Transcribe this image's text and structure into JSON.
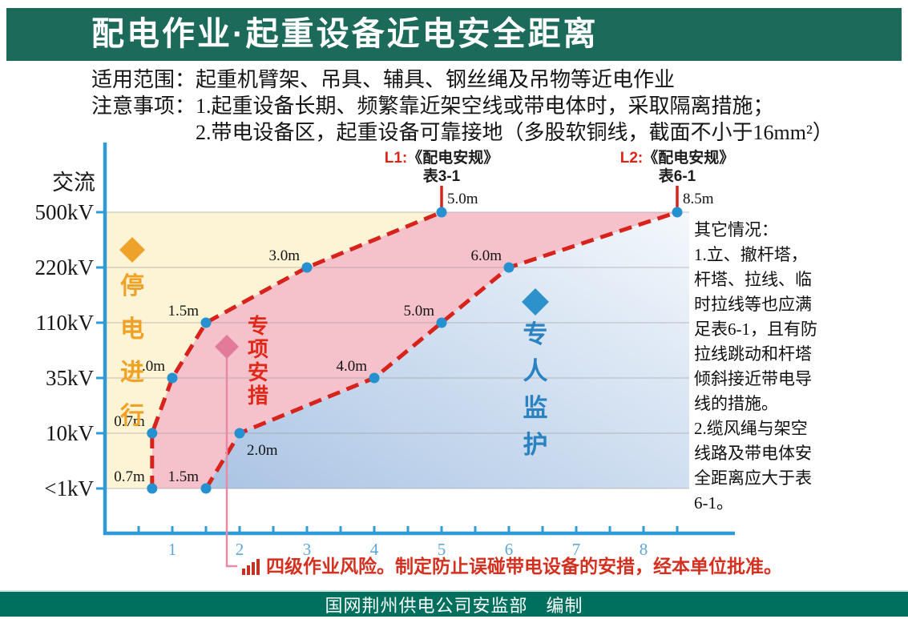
{
  "title": "配电作业·起重设备近电安全距离",
  "header": {
    "line1": "适用范围：起重机臂架、吊具、辅具、钢丝绳及吊物等近电作业",
    "line2": "注意事项：1.起重设备长期、频繁靠近架空线或带电体时，采取隔离措施；",
    "line3": "2.带电设备区，起重设备可靠接地（多股软铜线，截面不小于16mm²）"
  },
  "colors": {
    "header_bar": "#1c6a5a",
    "footer_bar": "#00705e",
    "axis": "#2e9ad8",
    "tick_label": "#5ea7d6",
    "grid": "#9a9a9a",
    "dot": "#2691d0",
    "dashed_line": "#d8231c",
    "risk_text": "#d5301f",
    "connector": "#e78aa6"
  },
  "chart_data": {
    "type": "line",
    "title": "配电作业·起重设备近电安全距离",
    "y_axis_label": "交流",
    "y_categories": [
      "<1kV",
      "10kV",
      "35kV",
      "110kV",
      "220kV",
      "500kV"
    ],
    "x_ticks": [
      1,
      2,
      3,
      4,
      5,
      6,
      7,
      8
    ],
    "x_range": [
      0,
      8.5
    ],
    "x_unit": "m",
    "grid": true,
    "series": [
      {
        "id_label": "L1:",
        "ref": "《配电安规》",
        "table": "表3-1",
        "color": "#d8231c",
        "points": [
          {
            "x": 0.7,
            "y": "<1kV",
            "label": "0.7m",
            "lpos": "left"
          },
          {
            "x": 0.7,
            "y": "10kV",
            "label": "0.7m",
            "lpos": "left"
          },
          {
            "x": 1.0,
            "y": "35kV",
            "label": "1.0m",
            "lpos": "left"
          },
          {
            "x": 1.5,
            "y": "110kV",
            "label": "1.5m",
            "lpos": "left"
          },
          {
            "x": 3.0,
            "y": "220kV",
            "label": "3.0m",
            "lpos": "left"
          },
          {
            "x": 5.0,
            "y": "500kV",
            "label": "5.0m",
            "lpos": "right"
          }
        ]
      },
      {
        "id_label": "L2:",
        "ref": "《配电安规》",
        "table": "表6-1",
        "color": "#d8231c",
        "points": [
          {
            "x": 1.5,
            "y": "<1kV",
            "label": "1.5m",
            "lpos": "left"
          },
          {
            "x": 2.0,
            "y": "10kV",
            "label": "2.0m",
            "lpos": "below"
          },
          {
            "x": 4.0,
            "y": "35kV",
            "label": "4.0m",
            "lpos": "left"
          },
          {
            "x": 5.0,
            "y": "110kV",
            "label": "5.0m",
            "lpos": "left"
          },
          {
            "x": 6.0,
            "y": "220kV",
            "label": "6.0m",
            "lpos": "left"
          },
          {
            "x": 8.5,
            "y": "500kV",
            "label": "8.5m",
            "lpos": "right"
          }
        ]
      }
    ],
    "regions": [
      {
        "label": "停电进行",
        "text_color": "#f0a226",
        "marker_color": "#eea229",
        "fill": "#fcf4d4",
        "marker": "diamond"
      },
      {
        "label": "专项安措",
        "text_color": "#e02818",
        "marker_color": "#e27b99",
        "fill": "#f5c2cc",
        "marker": "diamond"
      },
      {
        "label": "专人监护",
        "text_color": "#2a82c0",
        "marker_color": "#2d92cc",
        "fill_gradient": [
          "#aac4e4",
          "#f4f8fc"
        ],
        "marker": "diamond"
      }
    ],
    "risk_note": "四级作业风险。制定防止误碰带电设备的安措，经本单位批准。"
  },
  "side_notes": {
    "lines": [
      "其它情况：",
      "1.立、撤杆塔，",
      "杆塔、拉线、临",
      "时拉线等也应满",
      "足表6-1，且有防",
      "拉线跳动和杆塔",
      "倾斜接近带电导",
      "线的措施。",
      "2.缆风绳与架空",
      "线路及带电体安",
      "全距离应大于表",
      "6-1。"
    ]
  },
  "footer": {
    "text": "国网荆州供电公司安监部　编制"
  }
}
